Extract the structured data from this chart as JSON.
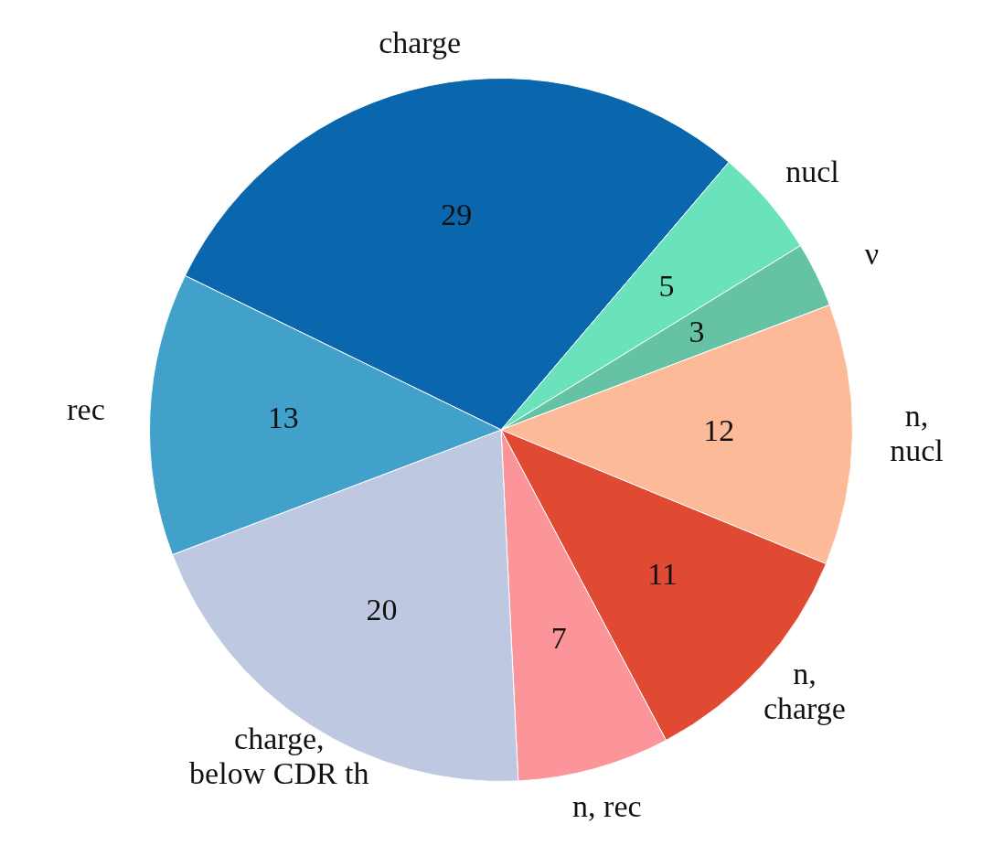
{
  "chart_data": {
    "type": "pie",
    "categories": [
      "charge",
      "nucl",
      "ν",
      "n, nucl",
      "n, charge",
      "n, rec",
      "charge, below CDR th",
      "rec"
    ],
    "values": [
      29,
      5,
      3,
      12,
      11,
      7,
      20,
      13
    ],
    "colors": [
      "#0a67ad",
      "#6ae3bd",
      "#66c2a5",
      "#fcba98",
      "#e04a33",
      "#fc9599",
      "#bec8e1",
      "#42a1cb"
    ],
    "data_labels": true,
    "legend": false
  }
}
